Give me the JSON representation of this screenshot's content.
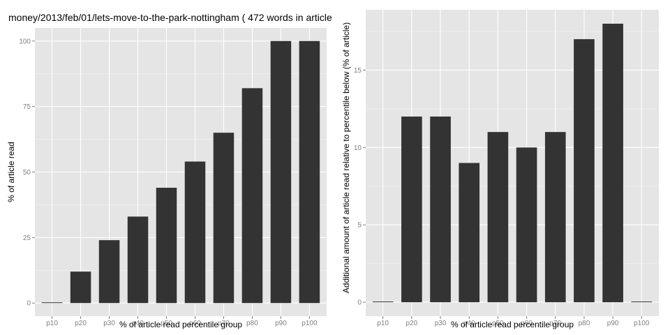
{
  "chart_data": [
    {
      "type": "bar",
      "title": "money/2013/feb/01/lets-move-to-the-park-nottingham ( 472 words in article )",
      "xlabel": "% of article read percentile group",
      "ylabel": "% of article read",
      "categories": [
        "p10",
        "p20",
        "p30",
        "p40",
        "p50",
        "p60",
        "p70",
        "p80",
        "p90",
        "p100"
      ],
      "values": [
        0,
        12,
        24,
        33,
        44,
        54,
        65,
        82,
        100,
        100
      ],
      "ylim": [
        -5,
        105
      ],
      "yticks": [
        0,
        25,
        50,
        75,
        100
      ],
      "grid": true,
      "bar_color": "#333333",
      "panel_color": "#e5e5e5"
    },
    {
      "type": "bar",
      "title": "",
      "xlabel": "% of article read percentile group",
      "ylabel": "Additional amount of article read relative to percentile below (% of article)",
      "categories": [
        "p10",
        "p20",
        "p30",
        "p40",
        "p50",
        "p60",
        "p70",
        "p80",
        "p90",
        "p100"
      ],
      "values": [
        0,
        12,
        12,
        9,
        11,
        10,
        11,
        17,
        18,
        0
      ],
      "ylim": [
        -0.9,
        18.9
      ],
      "yticks": [
        0,
        5,
        10,
        15
      ],
      "grid": true,
      "bar_color": "#333333",
      "panel_color": "#e5e5e5"
    }
  ]
}
